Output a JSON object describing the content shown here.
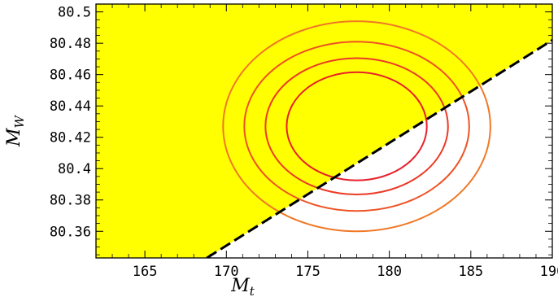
{
  "chart_data": {
    "type": "contour",
    "xlabel": {
      "main": "M",
      "sub": "t"
    },
    "ylabel": {
      "main": "M",
      "sub": "W"
    },
    "xlim": [
      162,
      190
    ],
    "ylim": [
      80.343,
      80.505
    ],
    "xticks": [
      165,
      170,
      175,
      180,
      185,
      190
    ],
    "xtick_labels": [
      "165",
      "170",
      "175",
      "180",
      "185",
      "190"
    ],
    "yticks": [
      80.36,
      80.38,
      80.4,
      80.42,
      80.44,
      80.46,
      80.48,
      80.5
    ],
    "ytick_labels": [
      "80.36",
      "80.38",
      "80.4",
      "80.42",
      "80.44",
      "80.46",
      "80.48",
      "80.5"
    ],
    "grid": false,
    "shaded_region": {
      "description_color": "#ffff00",
      "boundary_line": [
        [
          168.8,
          80.343
        ],
        [
          190,
          80.482
        ]
      ],
      "side": "above"
    },
    "dashed_line": {
      "points": [
        [
          168.8,
          80.343
        ],
        [
          190,
          80.482
        ]
      ],
      "color": "#000000"
    },
    "ellipses": {
      "center": [
        178,
        80.427
      ],
      "contours": [
        {
          "rx": 4.3,
          "ry": 0.0345,
          "color": "#e8202a"
        },
        {
          "rx": 5.6,
          "ry": 0.0435,
          "color": "#ec3a26"
        },
        {
          "rx": 6.9,
          "ry": 0.054,
          "color": "#ef5224"
        },
        {
          "rx": 8.2,
          "ry": 0.067,
          "color": "#f07826"
        }
      ]
    }
  }
}
